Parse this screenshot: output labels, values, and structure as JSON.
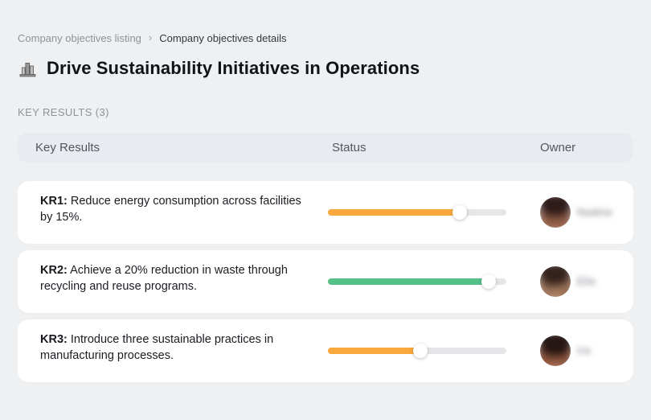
{
  "breadcrumb": {
    "previous": "Company objectives listing",
    "separator": "›",
    "current": "Company objectives details"
  },
  "header": {
    "title": "Drive Sustainability Initiatives in Operations",
    "title_icon": "building-skyline-icon"
  },
  "section": {
    "label": "KEY RESULTS (3)"
  },
  "table": {
    "columns": [
      "Key Results",
      "Status",
      "Owner"
    ]
  },
  "rows": [
    {
      "kr_label": "KR1:",
      "text": "Reduce energy consumption across facilities by 15%.",
      "progress_percent": 74,
      "progress_color": "#F9A93C",
      "owner_name": "Nadine",
      "owner_name_blurred": true
    },
    {
      "kr_label": "KR2:",
      "text": "Achieve a 20% reduction in waste through recycling and reuse programs.",
      "progress_percent": 90,
      "progress_color": "#55C189",
      "owner_name": "Elie",
      "owner_name_blurred": true
    },
    {
      "kr_label": "KR3:",
      "text": "Introduce three sustainable practices in manufacturing processes.",
      "progress_percent": 52,
      "progress_color": "#F9A93C",
      "owner_name": "Ira",
      "owner_name_blurred": true
    }
  ],
  "colors": {
    "page_background": "#EFF0F2",
    "card_background": "#FFFFFF",
    "table_header_background": "#E8EBF0",
    "track_color": "#E6E6E8",
    "orange_accent": "#F9A93C",
    "green_accent": "#55C189"
  }
}
